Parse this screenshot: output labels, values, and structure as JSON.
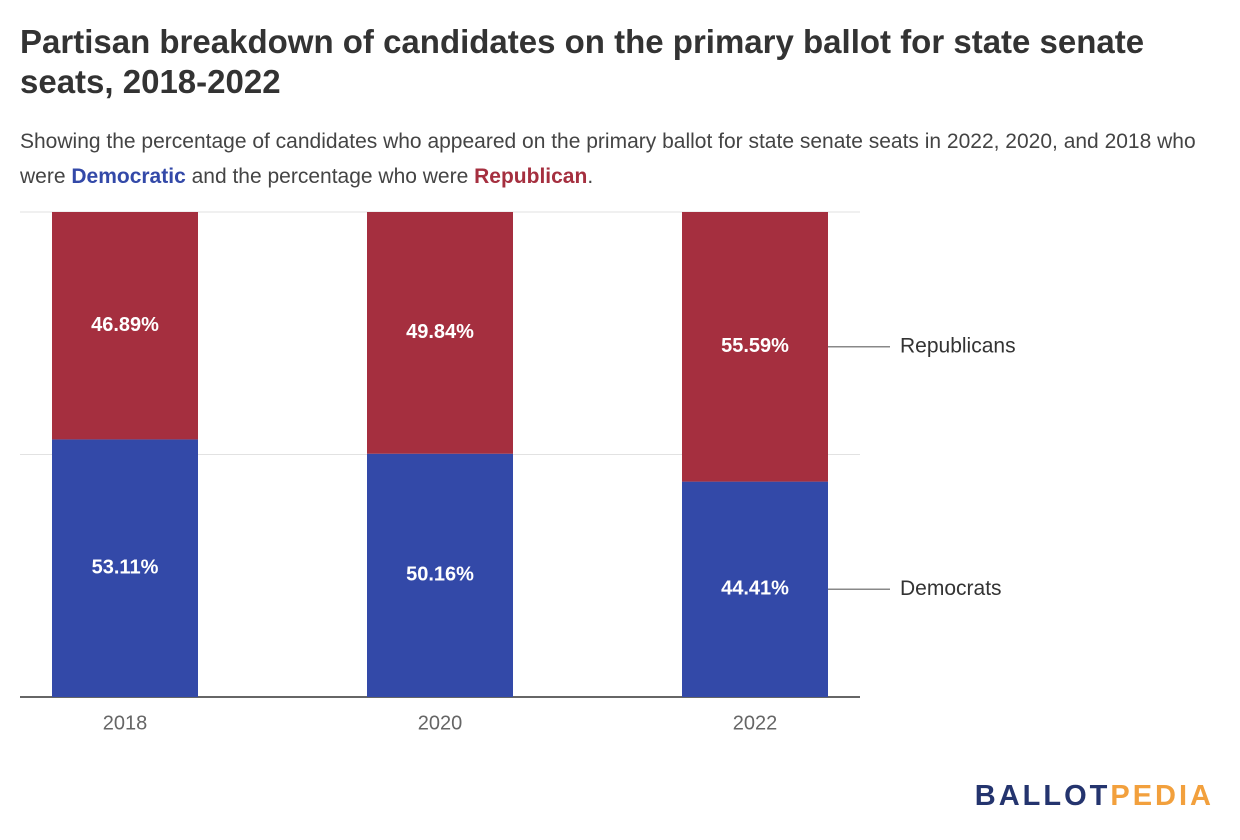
{
  "chart_data": {
    "type": "stacked_bar",
    "title": "Partisan breakdown of candidates on the primary ballot for state senate seats, 2018-2022",
    "subtitle": [
      {
        "text": "Showing the percentage of candidates who appeared on the primary ballot for state senate seats in 2022, 2020, and 2018 who were "
      },
      {
        "text": "Democratic",
        "color": "#3349a8"
      },
      {
        "text": " and the percentage who were "
      },
      {
        "text": "Republican",
        "color": "#a52f3f"
      },
      {
        "text": "."
      }
    ],
    "categories": [
      "2018",
      "2020",
      "2022"
    ],
    "series": [
      {
        "name": "Democrats",
        "color": "#3349a8",
        "values": [
          53.11,
          50.16,
          44.41
        ],
        "value_labels": [
          "53.11%",
          "50.16%",
          "44.41%"
        ]
      },
      {
        "name": "Republicans",
        "color": "#a52f3f",
        "values": [
          46.89,
          49.84,
          55.59
        ],
        "value_labels": [
          "46.89%",
          "49.84%",
          "55.59%"
        ]
      }
    ],
    "ylim": [
      0,
      100
    ],
    "yticks": [
      0,
      50,
      100
    ],
    "ytick_labels": false,
    "grid": true,
    "legend": "right",
    "logo": [
      {
        "text": "BALLOT",
        "color": "#24346e"
      },
      {
        "text": "PEDIA",
        "color": "#f2a03d"
      }
    ]
  }
}
